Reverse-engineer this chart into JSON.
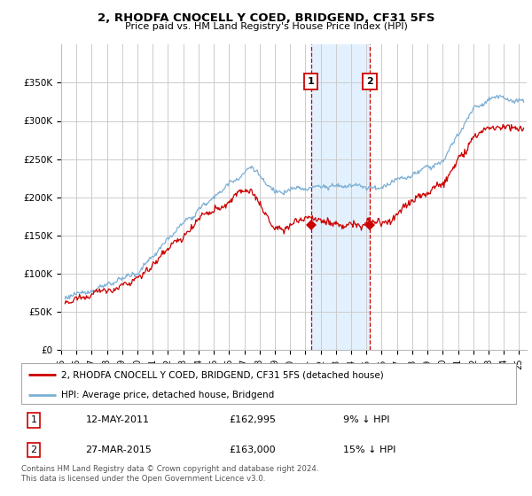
{
  "title": "2, RHODFA CNOCELL Y COED, BRIDGEND, CF31 5FS",
  "subtitle": "Price paid vs. HM Land Registry's House Price Index (HPI)",
  "x_start": 1995.25,
  "x_end": 2025.5,
  "y_min": 0,
  "y_max": 400000,
  "yticks": [
    0,
    50000,
    100000,
    150000,
    200000,
    250000,
    300000,
    350000
  ],
  "ytick_labels": [
    "£0",
    "£50K",
    "£100K",
    "£150K",
    "£200K",
    "£250K",
    "£300K",
    "£350K"
  ],
  "xtick_years": [
    1995,
    1996,
    1997,
    1998,
    1999,
    2000,
    2001,
    2002,
    2003,
    2004,
    2005,
    2006,
    2007,
    2008,
    2009,
    2010,
    2011,
    2012,
    2013,
    2014,
    2015,
    2016,
    2017,
    2018,
    2019,
    2020,
    2021,
    2022,
    2023,
    2024,
    2025
  ],
  "hpi_color": "#7bafd4",
  "sale_color": "#cc0000",
  "annotation_bg": "#ddeeff",
  "annotation_border": "#cc0000",
  "sale1_x": 2011.36,
  "sale1_y": 162995,
  "sale1_label": "1",
  "sale2_x": 2015.23,
  "sale2_y": 163000,
  "sale2_label": "2",
  "legend_sale_label": "2, RHODFA CNOCELL Y COED, BRIDGEND, CF31 5FS (detached house)",
  "legend_hpi_label": "HPI: Average price, detached house, Bridgend",
  "table_rows": [
    {
      "num": "1",
      "date": "12-MAY-2011",
      "price": "£162,995",
      "pct": "9% ↓ HPI"
    },
    {
      "num": "2",
      "date": "27-MAR-2015",
      "price": "£163,000",
      "pct": "15% ↓ HPI"
    }
  ],
  "footnote": "Contains HM Land Registry data © Crown copyright and database right 2024.\nThis data is licensed under the Open Government Licence v3.0.",
  "background_color": "#ffffff",
  "grid_color": "#cccccc"
}
